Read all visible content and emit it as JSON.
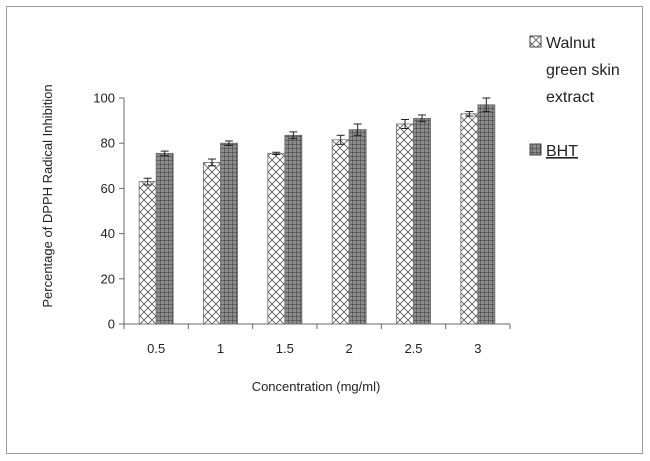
{
  "chart_data": {
    "type": "bar",
    "title": "",
    "xlabel": "Concentration (mg/ml)",
    "ylabel": "Percentage of DPPH Radical Inhibition",
    "ylim": [
      0,
      100
    ],
    "yticks": [
      0,
      20,
      40,
      60,
      80,
      100
    ],
    "categories": [
      "0.5",
      "1",
      "1.5",
      "2",
      "2.5",
      "3"
    ],
    "series": [
      {
        "name": "Walnut green skin extract",
        "legend_lines": [
          "Walnut",
          "green skin",
          "extract"
        ],
        "pattern": "crosshatch",
        "values": [
          63,
          71.5,
          75.5,
          81.5,
          88.5,
          93
        ],
        "errors": [
          1.5,
          1.5,
          0.5,
          2,
          2,
          1
        ]
      },
      {
        "name": "BHT",
        "legend_lines": [
          "BHT"
        ],
        "pattern": "dark-grid",
        "values": [
          75.5,
          80,
          83.5,
          86,
          91,
          97
        ],
        "errors": [
          1,
          1,
          1.5,
          2.5,
          1.5,
          3
        ]
      }
    ],
    "grid": false,
    "legend_position": "right"
  }
}
